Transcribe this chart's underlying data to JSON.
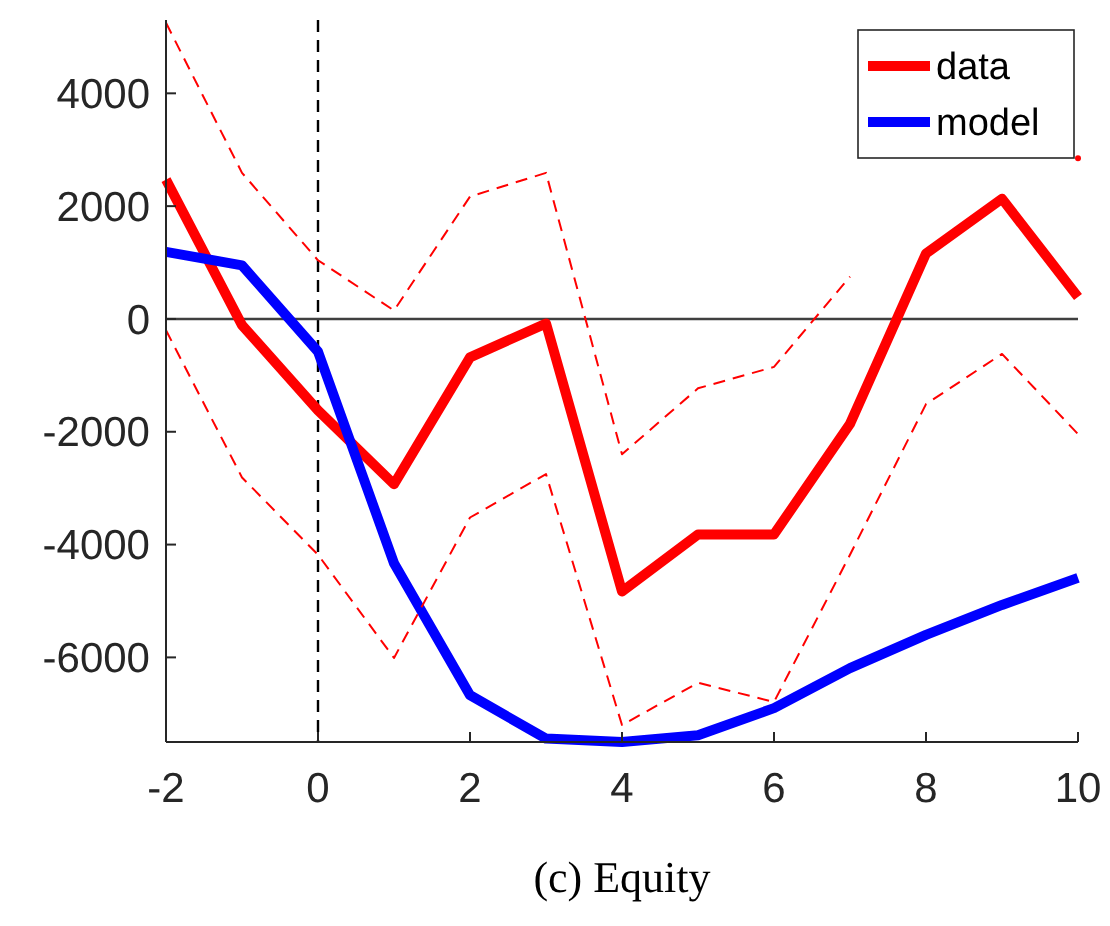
{
  "chart_data": {
    "type": "line",
    "title": "(c) Equity",
    "x": [
      -2,
      -1,
      0,
      1,
      2,
      3,
      4,
      5,
      6,
      7,
      8,
      9,
      10
    ],
    "series": [
      {
        "name": "data",
        "color": "#ff0000",
        "line_style": "solid",
        "values": [
          2470,
          -110,
          -1620,
          -2930,
          -680,
          -80,
          -4830,
          -3820,
          -3820,
          -1860,
          1160,
          2130,
          390
        ]
      },
      {
        "name": "model",
        "color": "#0000ff",
        "line_style": "solid",
        "values": [
          1190,
          950,
          -580,
          -4330,
          -6670,
          -7440,
          -7500,
          -7380,
          -6900,
          -6190,
          -5600,
          -5070,
          -4590
        ]
      },
      {
        "color": "#ff0000",
        "line_style": "dashed",
        "values": [
          5250,
          2590,
          1040,
          150,
          2170,
          2590,
          -2400,
          -1230,
          -850,
          750,
          null,
          null,
          2850
        ]
      },
      {
        "color": "#ff0000",
        "line_style": "dashed",
        "values": [
          -200,
          -2810,
          -4180,
          -6010,
          -3520,
          -2750,
          -7200,
          -6450,
          -6790,
          -4180,
          -1510,
          -620,
          -2040
        ]
      }
    ],
    "xlim": [
      -2,
      10
    ],
    "ylim": [
      -7500,
      5300
    ],
    "xticks": [
      -2,
      0,
      2,
      4,
      6,
      8,
      10
    ],
    "yticks": [
      -6000,
      -4000,
      -2000,
      0,
      2000,
      4000
    ],
    "ref_lines": [
      {
        "axis": "x",
        "value": 0,
        "color": "#000000",
        "line_style": "dashed"
      },
      {
        "axis": "y",
        "value": 0,
        "color": "#404040",
        "line_style": "solid"
      }
    ],
    "grid": false,
    "legend": "top right"
  }
}
